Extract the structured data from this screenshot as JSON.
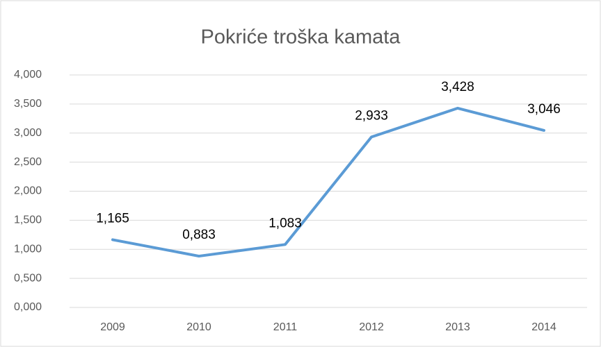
{
  "chart_data": {
    "type": "line",
    "title": "Pokriće troška kamata",
    "categories": [
      "2009",
      "2010",
      "2011",
      "2012",
      "2013",
      "2014"
    ],
    "series": [
      {
        "name": "Pokriće troška kamata",
        "color": "#5b9bd5",
        "values": [
          1.165,
          0.883,
          1.083,
          2.933,
          3.428,
          3.046
        ],
        "value_labels": [
          "1,165",
          "0,883",
          "1,083",
          "2,933",
          "3,428",
          "3,046"
        ]
      }
    ],
    "ylim": [
      0,
      4
    ],
    "yticks": [
      {
        "value": 0,
        "label": "0,000"
      },
      {
        "value": 0.5,
        "label": "0,500"
      },
      {
        "value": 1,
        "label": "1,000"
      },
      {
        "value": 1.5,
        "label": "1,500"
      },
      {
        "value": 2,
        "label": "2,000"
      },
      {
        "value": 2.5,
        "label": "2,500"
      },
      {
        "value": 3,
        "label": "3,000"
      },
      {
        "value": 3.5,
        "label": "3,500"
      },
      {
        "value": 4,
        "label": "4,000"
      }
    ],
    "grid": true
  }
}
